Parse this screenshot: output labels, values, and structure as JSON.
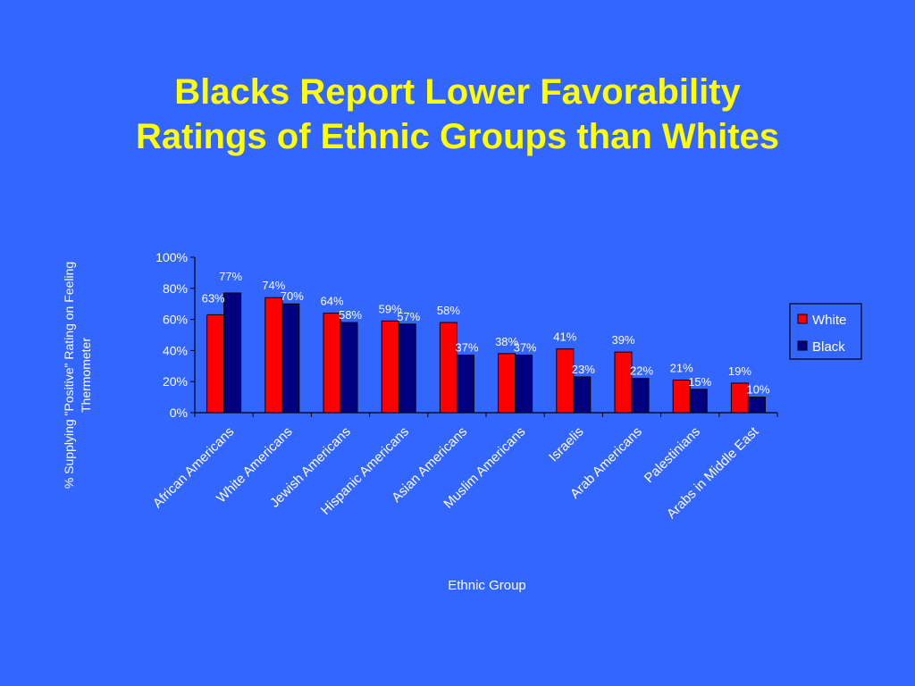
{
  "slide": {
    "title_line1": "Blacks Report Lower Favorability",
    "title_line2": "Ratings of Ethnic Groups than Whites"
  },
  "chart_data": {
    "type": "bar",
    "categories": [
      "African Americans",
      "White Americans",
      "Jewish Americans",
      "Hispanic Americans",
      "Asian Americans",
      "Muslim Americans",
      "Israelis",
      "Arab Americans",
      "Palestinians",
      "Arabs in Middle East"
    ],
    "series": [
      {
        "name": "White",
        "values": [
          63,
          74,
          64,
          59,
          58,
          38,
          41,
          39,
          21,
          19
        ],
        "color": "#FF0000"
      },
      {
        "name": "Black",
        "values": [
          77,
          70,
          58,
          57,
          37,
          37,
          23,
          22,
          15,
          10
        ],
        "color": "#000080"
      }
    ],
    "title": "",
    "xlabel": "Ethnic Group",
    "ylabel_line1": "% Supplying \"Positive\" Rating on Feeling",
    "ylabel_line2": "Thermometer",
    "ylim": [
      0,
      100
    ],
    "yticks": [
      "0%",
      "20%",
      "40%",
      "60%",
      "80%",
      "100%"
    ],
    "value_suffix": "%",
    "legend_position": "right",
    "grid": false,
    "background_color": "#3366FF",
    "axis_color": "#000000",
    "text_color": "#FFFFFF"
  }
}
